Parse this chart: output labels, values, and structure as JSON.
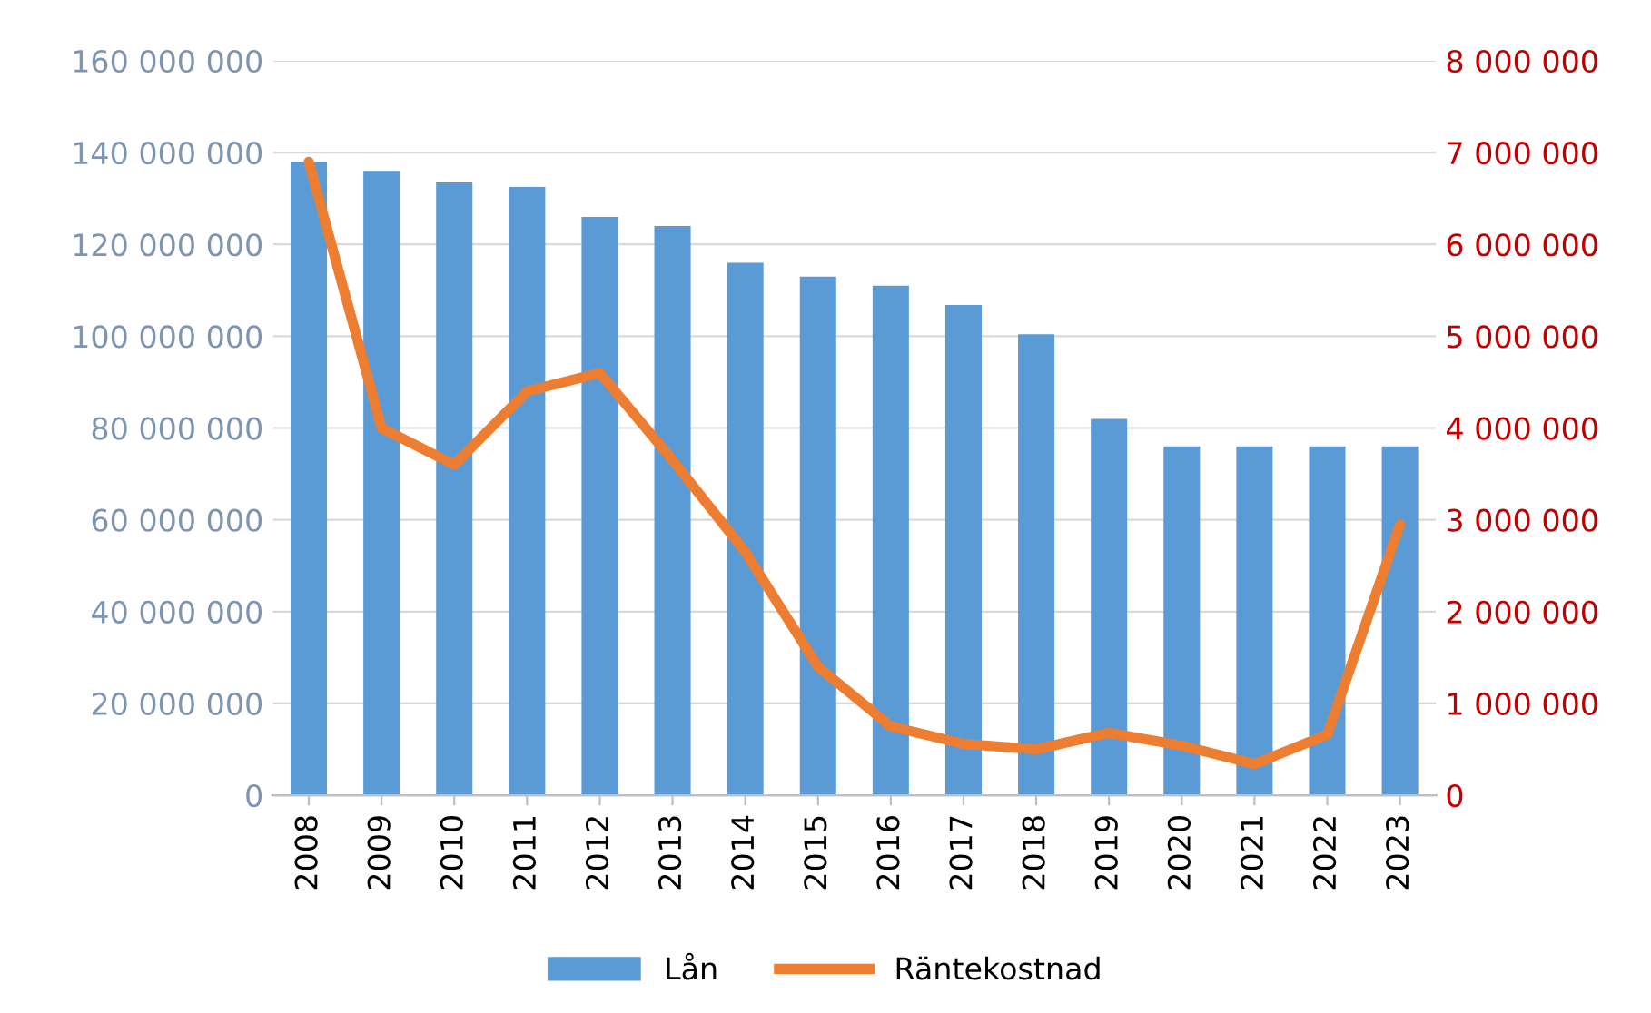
{
  "chart_data": {
    "type": "bar",
    "categories": [
      "2008",
      "2009",
      "2010",
      "2011",
      "2012",
      "2013",
      "2014",
      "2015",
      "2016",
      "2017",
      "2018",
      "2019",
      "2020",
      "2021",
      "2022",
      "2023"
    ],
    "series": [
      {
        "name": "Lån",
        "color": "#5b9bd5",
        "values": [
          138000000,
          136000000,
          133500000,
          132500000,
          126000000,
          124000000,
          116000000,
          113000000,
          111000000,
          106800000,
          100400000,
          82000000,
          76000000,
          76000000,
          76000000,
          76000000
        ]
      },
      {
        "name": "Räntekostnad",
        "type": "line",
        "axis": "y2",
        "color": "#ed7d31",
        "values": [
          6900000,
          4000000,
          3600000,
          4400000,
          4600000,
          3650000,
          2650000,
          1400000,
          750000,
          560000,
          500000,
          680000,
          540000,
          340000,
          660000,
          2950000
        ]
      }
    ],
    "ylim": [
      0,
      160000000
    ],
    "yticks": [
      0,
      {
        "value": 20000000,
        "label": "20 000 000"
      },
      {
        "value": 40000000,
        "label": "40 000 000"
      },
      {
        "value": 60000000,
        "label": "60 000 000"
      },
      {
        "value": 80000000,
        "label": "80 000 000"
      },
      {
        "value": 100000000,
        "label": "100 000 000"
      },
      {
        "value": 120000000,
        "label": "120 000 000"
      },
      {
        "value": 140000000,
        "label": "140 000 000"
      },
      {
        "value": 160000000,
        "label": "160 000 000"
      }
    ],
    "y2lim": [
      0,
      8000000
    ],
    "y2ticks": [
      0,
      {
        "value": 1000000,
        "label": "1 000 000"
      },
      {
        "value": 2000000,
        "label": "2 000 000"
      },
      {
        "value": 3000000,
        "label": "3 000 000"
      },
      {
        "value": 4000000,
        "label": "4 000 000"
      },
      {
        "value": 5000000,
        "label": "5 000 000"
      },
      {
        "value": 6000000,
        "label": "6 000 000"
      },
      {
        "value": 7000000,
        "label": "7 000 000"
      },
      {
        "value": 8000000,
        "label": "8 000 000"
      }
    ],
    "grid": "y",
    "legend": "bottom",
    "marker": "none",
    "line_style": "solid"
  }
}
